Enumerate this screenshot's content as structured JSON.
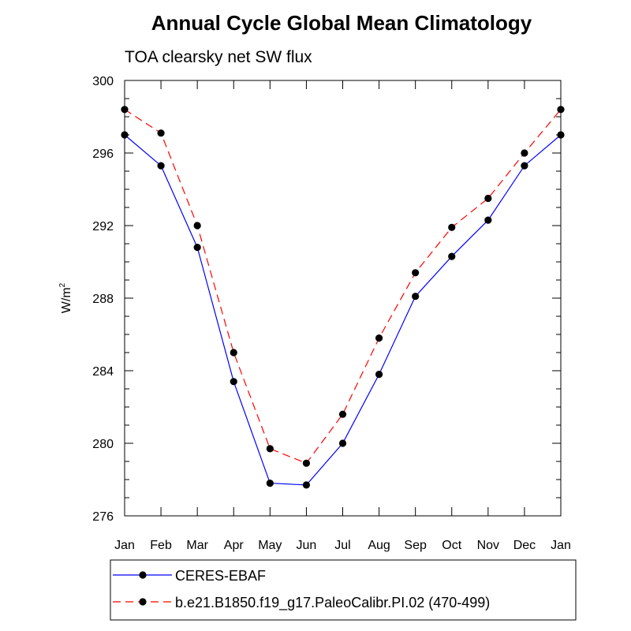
{
  "chart_data": {
    "type": "line",
    "title": "Annual Cycle Global Mean Climatology",
    "subtitle": "TOA clearsky net SW flux",
    "ylabel_base": "W/m",
    "ylabel_sup": "2",
    "xlabel": "",
    "categories": [
      "Jan",
      "Feb",
      "Mar",
      "Apr",
      "May",
      "Jun",
      "Jul",
      "Aug",
      "Sep",
      "Oct",
      "Nov",
      "Dec",
      "Jan"
    ],
    "ylim": [
      276,
      300
    ],
    "yticks": [
      276,
      280,
      284,
      288,
      292,
      296,
      300
    ],
    "series": [
      {
        "name": "CERES-EBAF",
        "color": "#0000ff",
        "dash": "solid",
        "values": [
          297.0,
          295.3,
          290.8,
          283.4,
          277.8,
          277.7,
          280.0,
          283.8,
          288.1,
          290.3,
          292.3,
          295.3,
          297.0
        ]
      },
      {
        "name": "b.e21.B1850.f19_g17.PaleoCalibr.PI.02 (470-499)",
        "color": "#ff0000",
        "dash": "dashed",
        "values": [
          298.4,
          297.1,
          292.0,
          285.0,
          279.7,
          278.9,
          281.6,
          285.8,
          289.4,
          291.9,
          293.5,
          296.0,
          298.4
        ]
      }
    ],
    "legend_position": "bottom"
  }
}
